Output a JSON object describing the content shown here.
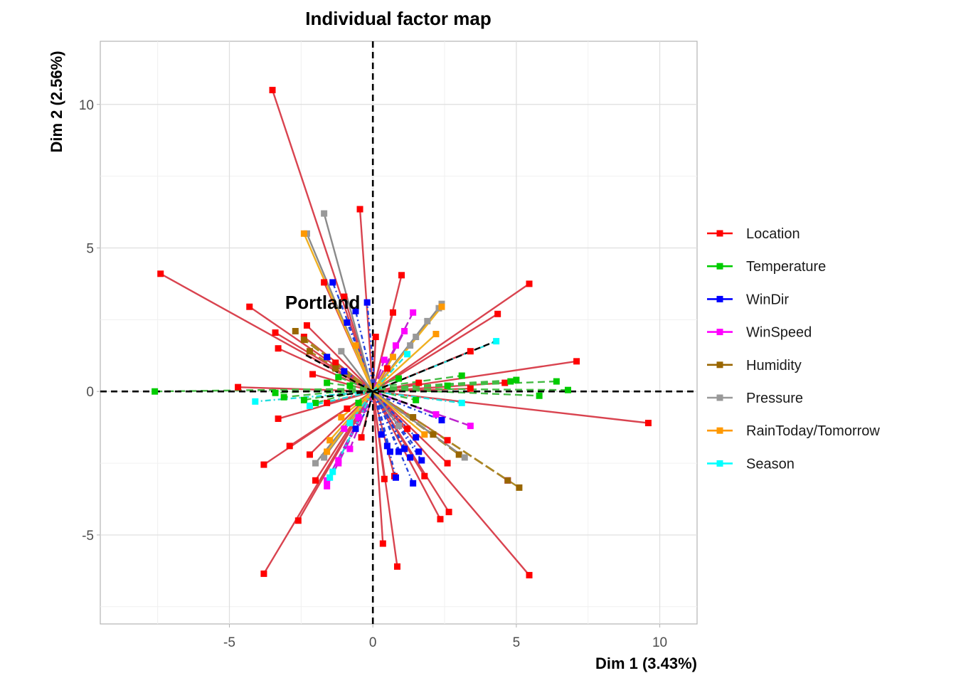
{
  "chart_data": {
    "type": "scatter",
    "title": "Individual factor map",
    "xlabel": "Dim 1 (3.43%)",
    "ylabel": "Dim 2 (2.56%)",
    "xlim": [
      -9.5,
      11.3
    ],
    "ylim": [
      -8.1,
      12.2
    ],
    "xticks": [
      -5,
      0,
      5,
      10
    ],
    "yticks": [
      -5,
      0,
      5,
      10
    ],
    "grid": true,
    "legend_position": "right",
    "annotations": [
      {
        "text": "Portland",
        "x": -1.75,
        "y": 3.1
      }
    ],
    "series": [
      {
        "name": "Location",
        "color": "#ff0000",
        "line_color": "#d9434f",
        "dash": "",
        "center": [
          0.0,
          0.0
        ],
        "points": [
          [
            -3.5,
            10.5
          ],
          [
            -7.4,
            4.1
          ],
          [
            -0.45,
            6.35
          ],
          [
            1.0,
            4.05
          ],
          [
            5.45,
            3.75
          ],
          [
            -4.3,
            2.95
          ],
          [
            -1.7,
            3.8
          ],
          [
            -1.0,
            3.3
          ],
          [
            -3.4,
            2.05
          ],
          [
            -2.3,
            2.3
          ],
          [
            -3.3,
            1.5
          ],
          [
            -2.4,
            1.9
          ],
          [
            -2.1,
            0.6
          ],
          [
            0.7,
            2.75
          ],
          [
            4.35,
            2.7
          ],
          [
            3.4,
            1.4
          ],
          [
            7.1,
            1.05
          ],
          [
            4.6,
            0.3
          ],
          [
            3.4,
            0.1
          ],
          [
            9.6,
            -1.1
          ],
          [
            -4.7,
            0.15
          ],
          [
            -3.3,
            -0.95
          ],
          [
            -2.9,
            -1.9
          ],
          [
            -2.2,
            -2.2
          ],
          [
            -3.8,
            -2.55
          ],
          [
            -2.0,
            -3.1
          ],
          [
            -2.6,
            -4.5
          ],
          [
            -3.8,
            -6.35
          ],
          [
            0.35,
            -5.3
          ],
          [
            0.85,
            -6.1
          ],
          [
            0.4,
            -3.05
          ],
          [
            0.75,
            -2.95
          ],
          [
            2.6,
            -2.5
          ],
          [
            1.8,
            -2.95
          ],
          [
            2.35,
            -4.45
          ],
          [
            2.65,
            -4.2
          ],
          [
            5.45,
            -6.4
          ],
          [
            2.6,
            -1.7
          ],
          [
            -0.9,
            -0.6
          ],
          [
            1.2,
            -1.3
          ],
          [
            0.5,
            0.8
          ],
          [
            -1.3,
            1.0
          ],
          [
            1.6,
            0.3
          ],
          [
            -0.4,
            -1.6
          ],
          [
            0.1,
            1.9
          ],
          [
            -1.6,
            -0.4
          ]
        ]
      },
      {
        "name": "Temperature",
        "color": "#00cc00",
        "line_color": "#44bb44",
        "dash": "10,6",
        "center": [
          -0.2,
          0.1
        ],
        "points": [
          [
            -7.6,
            0.0
          ],
          [
            -3.4,
            -0.05
          ],
          [
            -3.1,
            -0.2
          ],
          [
            -2.4,
            -0.3
          ],
          [
            -2.0,
            -0.4
          ],
          [
            -1.6,
            0.3
          ],
          [
            -1.2,
            0.5
          ],
          [
            -0.8,
            0.2
          ],
          [
            4.8,
            0.35
          ],
          [
            5.0,
            0.4
          ],
          [
            5.8,
            -0.15
          ],
          [
            6.4,
            0.35
          ],
          [
            6.8,
            0.05
          ],
          [
            2.6,
            0.2
          ],
          [
            3.1,
            0.55
          ],
          [
            1.5,
            -0.3
          ],
          [
            0.9,
            0.45
          ],
          [
            -0.5,
            -0.4
          ]
        ]
      },
      {
        "name": "WinDir",
        "color": "#0000ff",
        "line_color": "#2244dd",
        "dash": "6,4,2,4",
        "center": [
          0.1,
          -0.1
        ],
        "points": [
          [
            -1.4,
            3.8
          ],
          [
            -0.6,
            2.8
          ],
          [
            -0.2,
            3.1
          ],
          [
            -0.9,
            2.4
          ],
          [
            -1.6,
            1.2
          ],
          [
            -1.0,
            0.7
          ],
          [
            0.9,
            -2.1
          ],
          [
            1.1,
            -2.0
          ],
          [
            1.3,
            -2.3
          ],
          [
            1.6,
            -2.1
          ],
          [
            1.7,
            -2.4
          ],
          [
            1.4,
            -3.2
          ],
          [
            0.8,
            -3.0
          ],
          [
            0.6,
            -2.1
          ],
          [
            1.5,
            -1.6
          ],
          [
            0.3,
            -1.5
          ],
          [
            -0.6,
            -1.3
          ],
          [
            2.4,
            -1.0
          ],
          [
            0.5,
            -1.9
          ]
        ]
      },
      {
        "name": "WinSpeed",
        "color": "#ff00ff",
        "line_color": "#bb22cc",
        "dash": "14,5",
        "center": [
          0.0,
          0.0
        ],
        "points": [
          [
            -1.6,
            -3.3
          ],
          [
            -1.6,
            -3.1
          ],
          [
            -1.2,
            -2.5
          ],
          [
            -1.2,
            -2.4
          ],
          [
            -0.8,
            -2.0
          ],
          [
            1.4,
            2.75
          ],
          [
            1.1,
            2.1
          ],
          [
            0.8,
            1.6
          ],
          [
            4.7,
            -3.1
          ],
          [
            3.4,
            -1.2
          ],
          [
            2.2,
            -0.8
          ],
          [
            -1.0,
            -1.3
          ],
          [
            0.4,
            1.1
          ],
          [
            -0.5,
            -0.9
          ]
        ]
      },
      {
        "name": "Humidity",
        "color": "#996600",
        "line_color": "#aa8822",
        "dash": "14,5",
        "center": [
          0.0,
          0.0
        ],
        "points": [
          [
            -2.7,
            2.1
          ],
          [
            -2.4,
            1.8
          ],
          [
            -2.2,
            1.4
          ],
          [
            4.7,
            -3.1
          ],
          [
            5.1,
            -3.35
          ],
          [
            3.0,
            -2.2
          ],
          [
            2.1,
            -1.5
          ],
          [
            -1.3,
            0.8
          ],
          [
            1.4,
            -0.9
          ]
        ]
      },
      {
        "name": "Pressure",
        "color": "#999999",
        "line_color": "#8a8a8a",
        "dash": "",
        "center": [
          0.0,
          0.0
        ],
        "points": [
          [
            -1.7,
            6.2
          ],
          [
            -2.3,
            5.5
          ],
          [
            2.4,
            3.05
          ],
          [
            2.3,
            2.9
          ],
          [
            1.9,
            2.45
          ],
          [
            1.5,
            1.9
          ],
          [
            -2.0,
            -2.5
          ],
          [
            -1.7,
            -2.3
          ],
          [
            3.2,
            -2.3
          ],
          [
            1.3,
            1.6
          ],
          [
            -1.1,
            1.4
          ],
          [
            0.9,
            -1.2
          ]
        ]
      },
      {
        "name": "RainToday/Tomorrow",
        "color": "#ff9900",
        "line_color": "#f0b020",
        "dash": "",
        "center": [
          0.0,
          0.0
        ],
        "points": [
          [
            -2.4,
            5.5
          ],
          [
            2.4,
            2.95
          ],
          [
            2.2,
            2.0
          ],
          [
            -1.6,
            -2.1
          ],
          [
            -1.5,
            -1.7
          ],
          [
            1.8,
            -1.5
          ],
          [
            -0.6,
            1.6
          ],
          [
            0.7,
            1.2
          ],
          [
            -1.1,
            -0.9
          ]
        ]
      },
      {
        "name": "Season",
        "color": "#00ffff",
        "line_color": "#22dddd",
        "dash": "8,4,2,4",
        "center": [
          0.0,
          0.0
        ],
        "points": [
          [
            4.3,
            1.75
          ],
          [
            -4.1,
            -0.35
          ],
          [
            -1.5,
            -3.0
          ],
          [
            -1.4,
            -2.8
          ],
          [
            3.1,
            -0.4
          ],
          [
            -2.2,
            -0.5
          ],
          [
            1.2,
            1.3
          ],
          [
            -0.8,
            -1.1
          ]
        ]
      }
    ],
    "black_segments": [
      [
        [
          0.0,
          0.0
        ],
        [
          -2.4,
          1.3
        ]
      ],
      [
        [
          0.0,
          0.0
        ],
        [
          4.4,
          1.8
        ]
      ],
      [
        [
          0.0,
          0.0
        ],
        [
          -1.8,
          -0.2
        ]
      ],
      [
        [
          0.0,
          0.0
        ],
        [
          1.7,
          -0.6
        ]
      ],
      [
        [
          0.0,
          0.0
        ],
        [
          -0.3,
          -1.3
        ]
      ]
    ],
    "legend": [
      {
        "label": "Location",
        "color": "#ff0000"
      },
      {
        "label": "Temperature",
        "color": "#00cc00"
      },
      {
        "label": "WinDir",
        "color": "#0000ff"
      },
      {
        "label": "WinSpeed",
        "color": "#ff00ff"
      },
      {
        "label": "Humidity",
        "color": "#996600"
      },
      {
        "label": "Pressure",
        "color": "#999999"
      },
      {
        "label": "RainToday/Tomorrow",
        "color": "#ff9900"
      },
      {
        "label": "Season",
        "color": "#00ffff"
      }
    ]
  }
}
